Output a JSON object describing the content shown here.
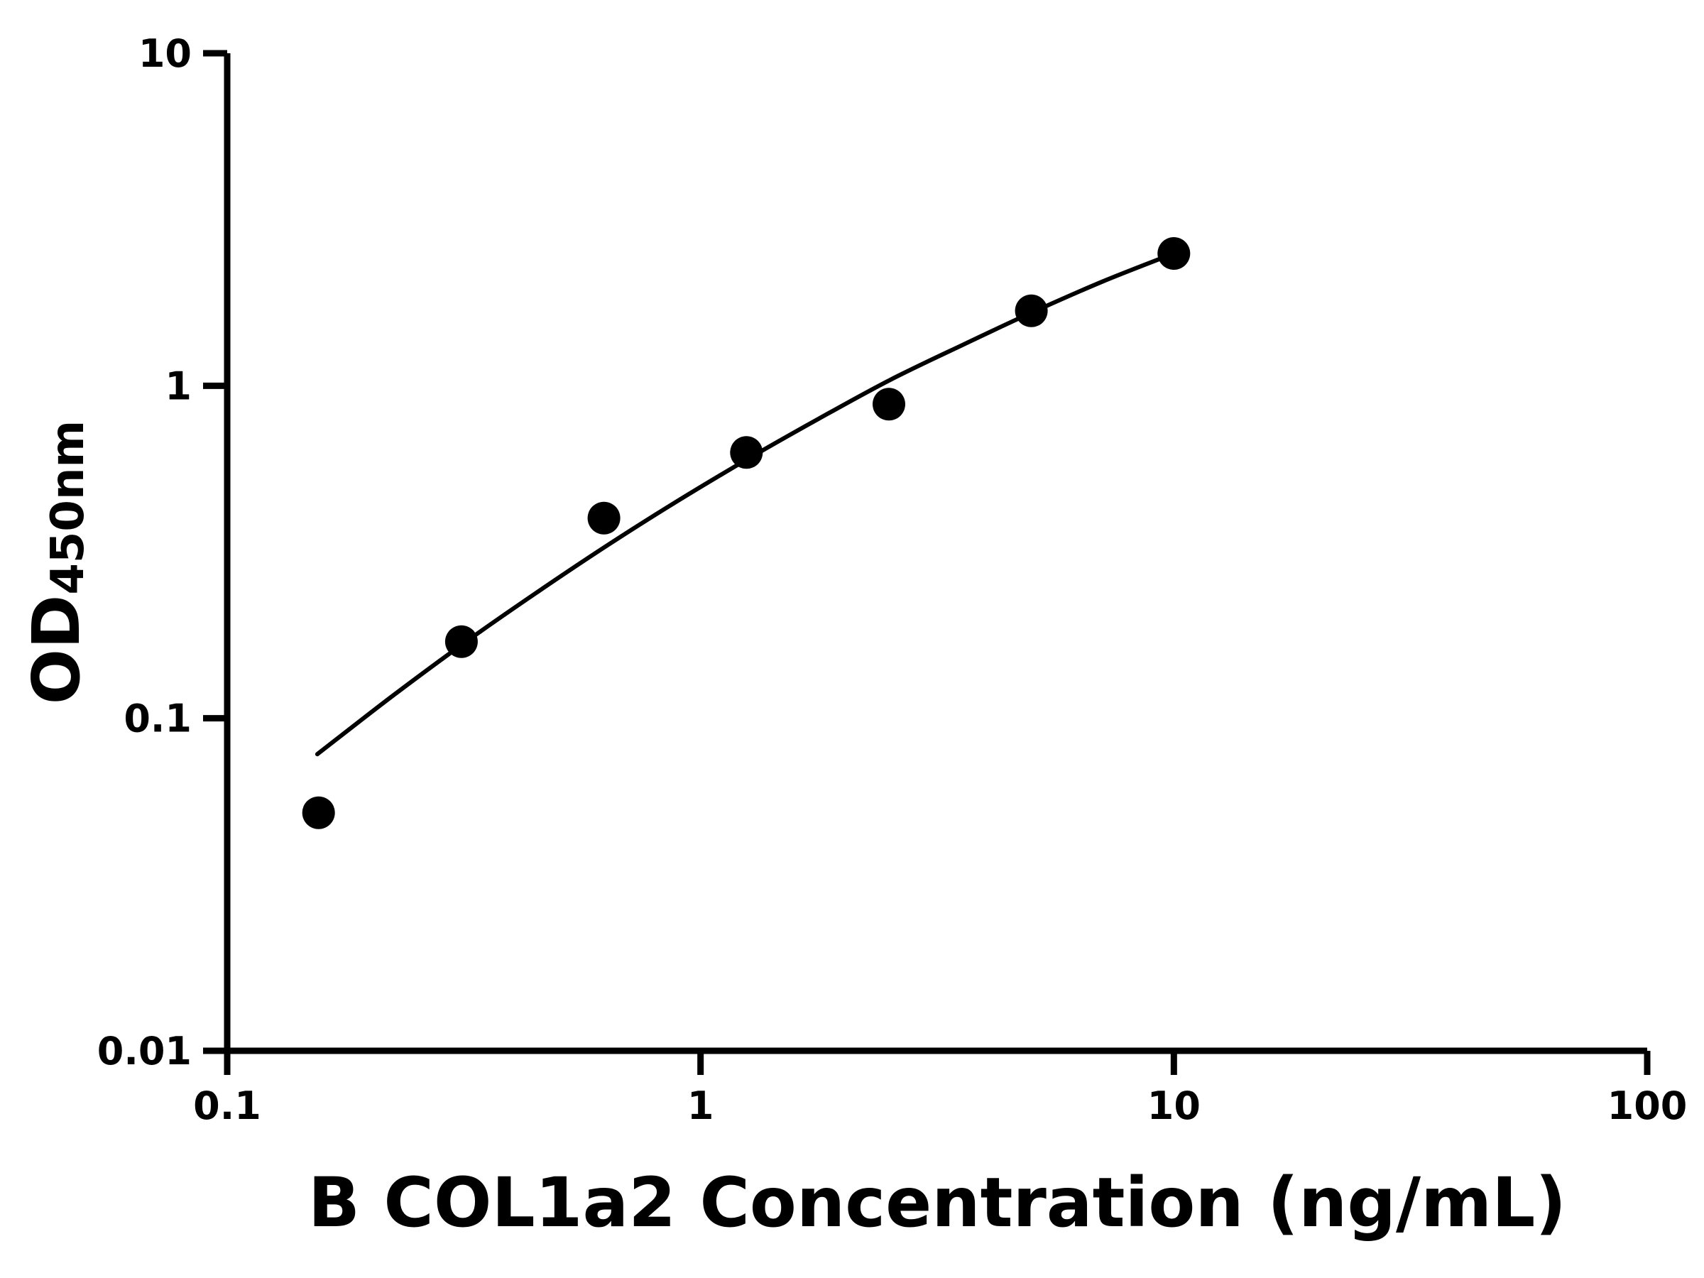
{
  "chart_data": {
    "type": "scatter",
    "title": "",
    "xlabel": "B COL1a2 Concentration (ng/mL)",
    "ylabel_main": "OD",
    "ylabel_sub": "450nm",
    "x_scale": "log",
    "y_scale": "log",
    "xlim": [
      0.1,
      100
    ],
    "ylim": [
      0.01,
      10
    ],
    "x_ticks": [
      0.1,
      1,
      10,
      100
    ],
    "x_tick_labels": [
      "0.1",
      "1",
      "10",
      "100"
    ],
    "y_ticks": [
      0.01,
      0.1,
      1,
      10
    ],
    "y_tick_labels": [
      "0.01",
      "0.1",
      "1",
      "10"
    ],
    "grid": false,
    "legend_position": "none",
    "axis_color": "#000000",
    "marker_color": "#000000",
    "curve_color": "#000000",
    "series": [
      {
        "name": "standard-points",
        "type": "scatter",
        "marker": "circle",
        "points": [
          {
            "x": 0.156,
            "y": 0.052
          },
          {
            "x": 0.3125,
            "y": 0.17
          },
          {
            "x": 0.625,
            "y": 0.4
          },
          {
            "x": 1.25,
            "y": 0.63
          },
          {
            "x": 2.5,
            "y": 0.88
          },
          {
            "x": 5,
            "y": 1.68
          },
          {
            "x": 10,
            "y": 2.5
          }
        ]
      },
      {
        "name": "fit-curve",
        "type": "line",
        "points": [
          {
            "x": 0.155,
            "y": 0.078
          },
          {
            "x": 0.224,
            "y": 0.117
          },
          {
            "x": 0.316,
            "y": 0.168
          },
          {
            "x": 0.447,
            "y": 0.237
          },
          {
            "x": 0.631,
            "y": 0.329
          },
          {
            "x": 0.891,
            "y": 0.449
          },
          {
            "x": 1.26,
            "y": 0.603
          },
          {
            "x": 1.78,
            "y": 0.797
          },
          {
            "x": 2.51,
            "y": 1.04
          },
          {
            "x": 3.55,
            "y": 1.32
          },
          {
            "x": 5.01,
            "y": 1.66
          },
          {
            "x": 7.08,
            "y": 2.06
          },
          {
            "x": 10,
            "y": 2.5
          }
        ]
      }
    ]
  }
}
